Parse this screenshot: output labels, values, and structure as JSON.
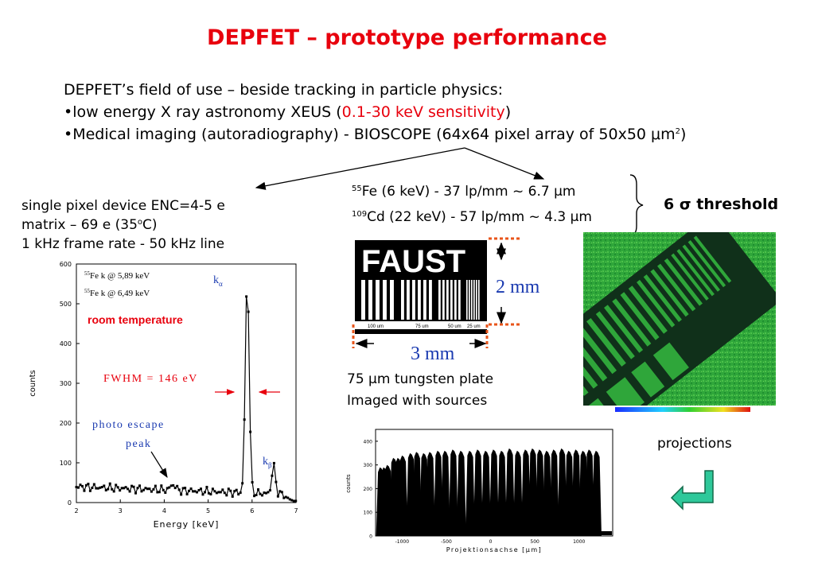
{
  "title": "DEPFET – prototype performance",
  "intro": {
    "line1": "DEPFET’s field of use – beside tracking in particle physics:",
    "bullet1_prefix": "•low energy X ray astronomy XEUS (",
    "bullet1_highlight": "0.1-30 keV sensitivity",
    "bullet1_suffix": ")",
    "bullet2_prefix": "•Medical imaging (autoradiography) - BIOSCOPE (64x64 pixel array of 50x50 ",
    "bullet2_unit": "μm",
    "bullet2_sup": "2",
    "bullet2_suffix": ")"
  },
  "left_info": {
    "line1": "single pixel device ENC=4-5 e",
    "line2_prefix": "matrix – 69 e (35",
    "line2_sup": "o",
    "line2_suffix": "C)",
    "line3": "1 kHz frame rate - 50 kHz line"
  },
  "resolution": {
    "line1_sup": "55",
    "line1": "Fe (6 keV) - 37 lp/mm ~ 6.7 μm",
    "line2_sup": "109",
    "line2": "Cd (22 keV) - 57 lp/mm ~ 4.3 μm",
    "threshold": "6 σ threshold"
  },
  "faust_plate": {
    "logo": "FAUST",
    "labels": [
      "100 um",
      "75 um",
      "50 um",
      "25 um"
    ],
    "height_label": "2 mm",
    "width_label": "3 mm",
    "caption1": "75 μm tungsten plate",
    "caption2": "Imaged with sources"
  },
  "projections_label": "projections",
  "spectrum": {
    "legend1": "Fe k  @  5,89 keV",
    "legend1_sup": "55",
    "legend1_sub": "α",
    "legend2": "Fe k  @  6,49 keV",
    "legend2_sup": "55",
    "legend2_sub": "β",
    "room": "room temperature",
    "fwhm": "FWHM = 146 eV",
    "escape1": "photo escape",
    "escape2": "peak",
    "ka": "k",
    "ka_sub": "α",
    "kb": "k",
    "kb_sub": "β",
    "xlabel": "Energy [keV]",
    "ylabel": "counts",
    "xticks": [
      "2",
      "3",
      "4",
      "5",
      "6",
      "7"
    ],
    "yticks": [
      "0",
      "100",
      "200",
      "300",
      "400",
      "500",
      "600"
    ]
  },
  "projection_chart": {
    "xlabel": "Projektionsachse [μm]",
    "ylabel": "counts",
    "xticks": [
      "-1000",
      "-500",
      "0",
      "500",
      "1000"
    ],
    "yticks": [
      "0",
      "100",
      "200",
      "300",
      "400"
    ]
  }
}
